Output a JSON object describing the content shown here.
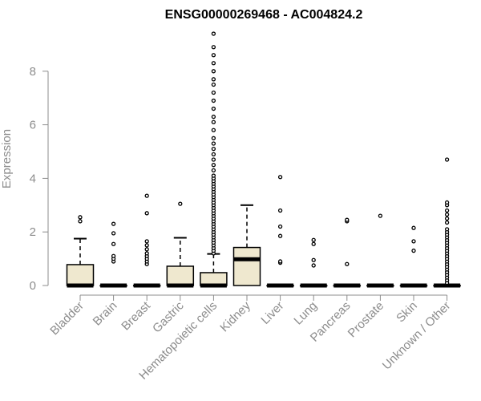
{
  "chart_data": {
    "type": "boxplot",
    "title": "ENSG00000269468 - AC004824.2",
    "xlabel": "",
    "ylabel": "Expression",
    "ylim": [
      0,
      9.5
    ],
    "yticks": [
      0,
      2,
      4,
      6,
      8
    ],
    "grid": false,
    "box_fill": "#efe8cf",
    "box_stroke": "#000000",
    "axis_color": "#8c8c8c",
    "categories": [
      "Bladder",
      "Brain",
      "Breast",
      "Gastric",
      "Hematopoietic cells",
      "Kidney",
      "Liver",
      "Lung",
      "Pancreas",
      "Prostate",
      "Skin",
      "Unknown / Other"
    ],
    "boxes": [
      {
        "q1": 0,
        "median": 0,
        "q3": 0.78,
        "whisker_low": 0,
        "whisker_high": 1.75,
        "outliers": [
          2.4,
          2.55
        ]
      },
      {
        "q1": 0,
        "median": 0,
        "q3": 0,
        "whisker_low": 0,
        "whisker_high": 0,
        "outliers": [
          0.9,
          1.0,
          1.1,
          1.55,
          1.95,
          2.3
        ]
      },
      {
        "q1": 0,
        "median": 0,
        "q3": 0,
        "whisker_low": 0,
        "whisker_high": 0,
        "outliers": [
          0.8,
          0.9,
          1.0,
          1.1,
          1.2,
          1.35,
          1.5,
          1.65,
          2.7,
          3.35
        ]
      },
      {
        "q1": 0,
        "median": 0,
        "q3": 0.72,
        "whisker_low": 0,
        "whisker_high": 1.78,
        "outliers": [
          3.05
        ]
      },
      {
        "q1": 0,
        "median": 0,
        "q3": 0.48,
        "whisker_low": 0,
        "whisker_high": 1.18,
        "outliers": [
          1.2,
          1.3,
          1.4,
          1.5,
          1.6,
          1.7,
          1.8,
          1.9,
          2.0,
          2.1,
          2.2,
          2.3,
          2.4,
          2.5,
          2.6,
          2.7,
          2.8,
          2.9,
          3.0,
          3.1,
          3.2,
          3.3,
          3.4,
          3.5,
          3.6,
          3.7,
          3.8,
          3.9,
          4.0,
          4.1,
          4.3,
          4.5,
          4.7,
          4.9,
          5.1,
          5.3,
          5.5,
          5.8,
          6.1,
          6.3,
          6.6,
          6.9,
          7.2,
          7.5,
          7.7,
          8.0,
          8.3,
          8.6,
          8.9,
          9.4
        ]
      },
      {
        "q1": 0,
        "median": 0.98,
        "q3": 1.42,
        "whisker_low": 0,
        "whisker_high": 3.0,
        "outliers": []
      },
      {
        "q1": 0,
        "median": 0,
        "q3": 0,
        "whisker_low": 0,
        "whisker_high": 0,
        "outliers": [
          0.85,
          0.9,
          1.85,
          2.2,
          2.8,
          4.05
        ]
      },
      {
        "q1": 0,
        "median": 0,
        "q3": 0,
        "whisker_low": 0,
        "whisker_high": 0,
        "outliers": [
          0.75,
          0.95,
          1.55,
          1.7
        ]
      },
      {
        "q1": 0,
        "median": 0,
        "q3": 0,
        "whisker_low": 0,
        "whisker_high": 0,
        "outliers": [
          0.8,
          2.4,
          2.45
        ]
      },
      {
        "q1": 0,
        "median": 0,
        "q3": 0,
        "whisker_low": 0,
        "whisker_high": 0,
        "outliers": [
          2.6
        ]
      },
      {
        "q1": 0,
        "median": 0,
        "q3": 0,
        "whisker_low": 0,
        "whisker_high": 0,
        "outliers": [
          1.3,
          1.65,
          2.15
        ]
      },
      {
        "q1": 0,
        "median": 0,
        "q3": 0,
        "whisker_low": 0,
        "whisker_high": 0,
        "outliers": [
          0.1,
          0.2,
          0.3,
          0.4,
          0.5,
          0.6,
          0.7,
          0.8,
          0.9,
          1.0,
          1.1,
          1.2,
          1.3,
          1.4,
          1.5,
          1.6,
          1.7,
          1.8,
          1.9,
          2.0,
          2.1,
          2.35,
          2.5,
          2.65,
          2.8,
          3.0,
          3.1,
          4.7
        ]
      }
    ]
  }
}
